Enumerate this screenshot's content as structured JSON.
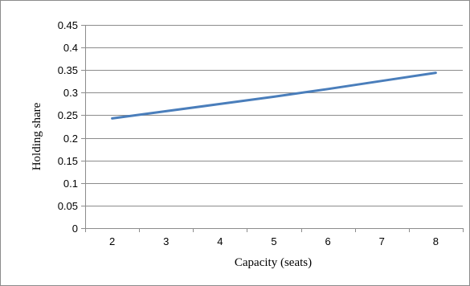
{
  "chart_data": {
    "type": "line",
    "title": "",
    "xlabel": "Capacity (seats)",
    "ylabel": "Holding share",
    "x": [
      2,
      3,
      4,
      5,
      6,
      7,
      8
    ],
    "series": [
      {
        "values": [
          0.243,
          0.259,
          0.275,
          0.291,
          0.308,
          0.326,
          0.344
        ],
        "color": "#4a7ebb"
      }
    ],
    "x_tick_labels": [
      "2",
      "3",
      "4",
      "5",
      "6",
      "7",
      "8"
    ],
    "y_tick_labels": [
      "0",
      "0.05",
      "0.1",
      "0.15",
      "0.2",
      "0.25",
      "0.3",
      "0.35",
      "0.4",
      "0.45"
    ],
    "y_ticks": [
      0,
      0.05,
      0.1,
      0.15,
      0.2,
      0.25,
      0.3,
      0.35,
      0.4,
      0.45
    ],
    "ylim": [
      0,
      0.45
    ],
    "grid": "horizontal",
    "legend": "none",
    "gridline_color": "#8c8c8c"
  }
}
